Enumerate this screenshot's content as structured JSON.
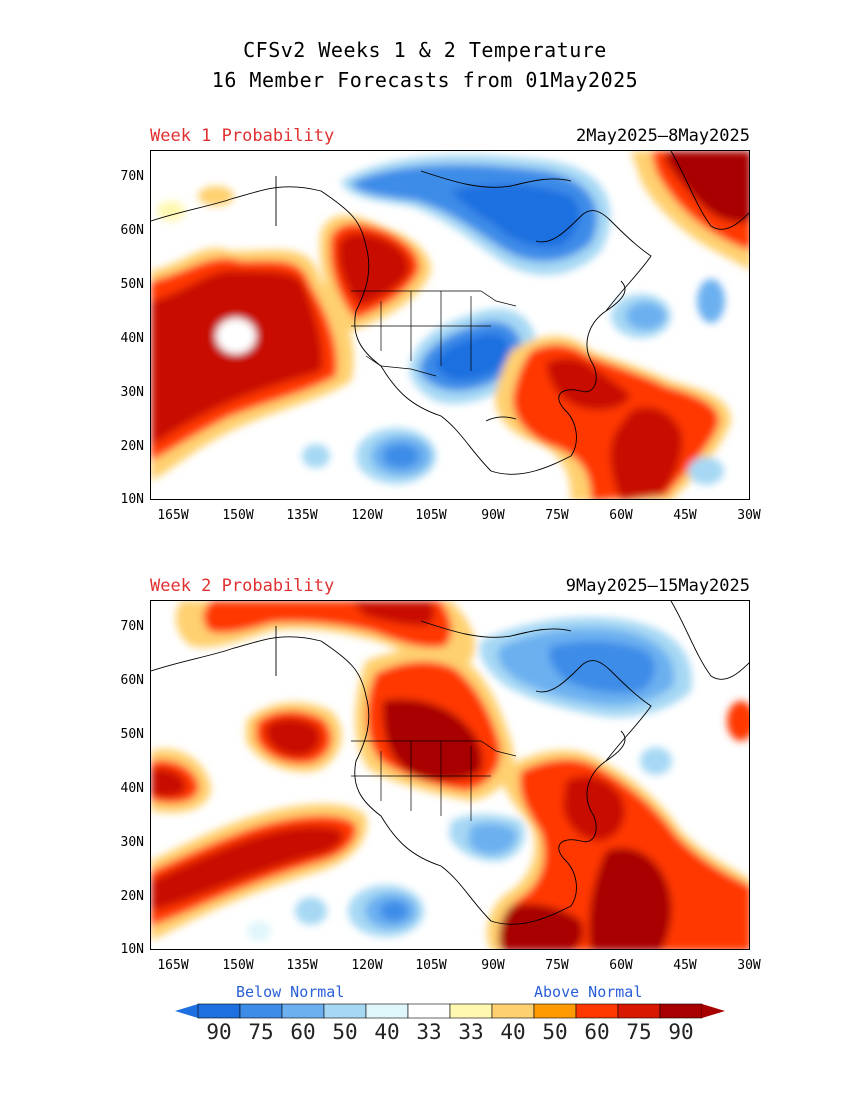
{
  "title": {
    "line1": "CFSv2 Weeks 1 & 2 Temperature",
    "line2": "16 Member Forecasts from 01May2025"
  },
  "panels": [
    {
      "label": "Week 1 Probability",
      "dates": "2May2025—8May2025"
    },
    {
      "label": "Week 2 Probability",
      "dates": "9May2025—15May2025"
    }
  ],
  "axes": {
    "y_ticks": [
      "70N",
      "60N",
      "50N",
      "40N",
      "30N",
      "20N",
      "10N"
    ],
    "x_ticks": [
      "165W",
      "150W",
      "135W",
      "120W",
      "105W",
      "90W",
      "75W",
      "60W",
      "45W",
      "30W"
    ]
  },
  "legend": {
    "below_label": "Below Normal",
    "above_label": "Above Normal",
    "values": [
      "90",
      "75",
      "60",
      "50",
      "40",
      "33",
      "33",
      "40",
      "50",
      "60",
      "75",
      "90"
    ],
    "colors": [
      "#1e6fe0",
      "#3c8ce8",
      "#6cb0f0",
      "#a6d8f4",
      "#dff6fb",
      "#ffffff",
      "#fff8b0",
      "#ffd070",
      "#ff9a00",
      "#ff3800",
      "#d81800",
      "#a80000"
    ],
    "arrow_left_color": "#1e6fe0",
    "arrow_right_color": "#a80000"
  }
}
